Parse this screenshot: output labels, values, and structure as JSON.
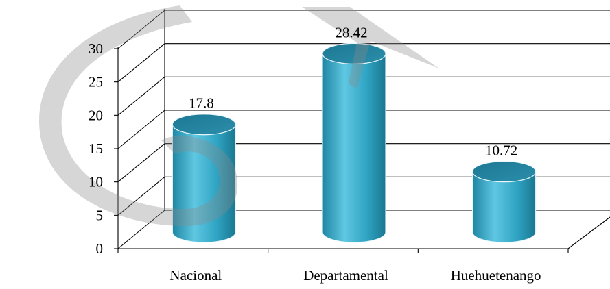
{
  "chart_data": {
    "type": "bar",
    "style": "3d-cylinder",
    "title": "",
    "xlabel": "",
    "ylabel": "",
    "categories": [
      "Nacional",
      "Departamental",
      "Huehuetenango"
    ],
    "values": [
      17.8,
      28.42,
      10.72
    ],
    "data_labels": [
      "17.8",
      "28.42",
      "10.72"
    ],
    "ylim": [
      0,
      30
    ],
    "y_ticks": [
      "0",
      "5",
      "10",
      "15",
      "20",
      "25",
      "30"
    ],
    "grid": true,
    "legend": "none",
    "colors": {
      "bar": "#2ea3c2",
      "bar_light": "#5ec6e0",
      "bar_top": "#1b6e85",
      "watermark": "#d0d0d0"
    }
  }
}
